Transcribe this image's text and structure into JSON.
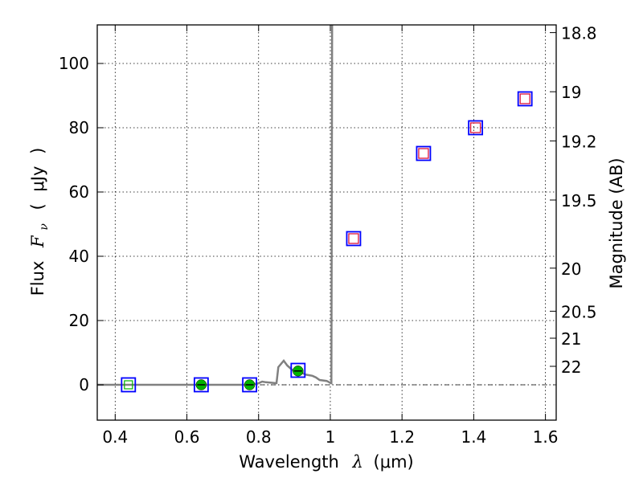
{
  "chart_data": {
    "type": "scatter",
    "xlabel_text": "Wavelength",
    "xlabel_symbol": "λ",
    "xlabel_unit": "(μm)",
    "ylabel_text": "Flux",
    "ylabel_symbol": "F",
    "ylabel_subscript": "ν",
    "ylabel_unit_open": "(",
    "ylabel_unit": "μJy",
    "ylabel_unit_close": ")",
    "y2label": "Magnitude (AB)",
    "xlim": [
      0.35,
      1.63
    ],
    "ylim": [
      -11,
      112
    ],
    "grid": true,
    "xticks": [
      0.4,
      0.6,
      0.8,
      1.0,
      1.2,
      1.4,
      1.6
    ],
    "xtick_labels": [
      "0.4",
      "0.6",
      "0.8",
      "1",
      "1.2",
      "1.4",
      "1.6"
    ],
    "yticks": [
      0,
      20,
      40,
      60,
      80,
      100
    ],
    "ytick_labels": [
      "0",
      "20",
      "40",
      "60",
      "80",
      "100"
    ],
    "y2ticks": [
      {
        "label": "18.8",
        "flux": 109.6
      },
      {
        "label": "19",
        "flux": 91.2
      },
      {
        "label": "19.2",
        "flux": 75.9
      },
      {
        "label": "19.5",
        "flux": 57.5
      },
      {
        "label": "20",
        "flux": 36.3
      },
      {
        "label": "20.5",
        "flux": 22.9
      },
      {
        "label": "21",
        "flux": 14.5
      },
      {
        "label": "22",
        "flux": 5.75
      }
    ],
    "zero_line": 0,
    "model_spectrum": {
      "color": "#808080",
      "points": [
        [
          0.35,
          0
        ],
        [
          0.78,
          0
        ],
        [
          0.8,
          0.5
        ],
        [
          0.81,
          1.0
        ],
        [
          0.82,
          0.8
        ],
        [
          0.85,
          0.5
        ],
        [
          0.855,
          5.5
        ],
        [
          0.87,
          7.5
        ],
        [
          0.88,
          6.0
        ],
        [
          0.885,
          5.5
        ],
        [
          0.895,
          4.5
        ],
        [
          0.91,
          4.0
        ],
        [
          0.92,
          3.8
        ],
        [
          0.93,
          3.2
        ],
        [
          0.95,
          2.8
        ],
        [
          0.96,
          2.3
        ],
        [
          0.97,
          1.5
        ],
        [
          0.99,
          1.2
        ],
        [
          1.0,
          0.6
        ],
        [
          1.003,
          0.5
        ],
        [
          1.004,
          45
        ],
        [
          1.005,
          112
        ]
      ]
    },
    "observed_squares": {
      "color": "#0000ff",
      "x": [
        0.437,
        0.64,
        0.775,
        0.91,
        1.065,
        1.26,
        1.405,
        1.543
      ],
      "y": [
        0,
        0,
        0,
        4.5,
        45.5,
        72,
        80,
        89
      ]
    },
    "model_squares": {
      "color": "#dc143c",
      "x": [
        1.065,
        1.26,
        1.405,
        1.543
      ],
      "y": [
        45.5,
        72,
        80,
        89
      ]
    },
    "detections": {
      "color": "#00b400",
      "x": [
        0.64,
        0.775,
        0.91
      ],
      "y": [
        0,
        0,
        4.3
      ]
    },
    "marker_green_square": {
      "x": 0.437,
      "y": 0
    }
  }
}
